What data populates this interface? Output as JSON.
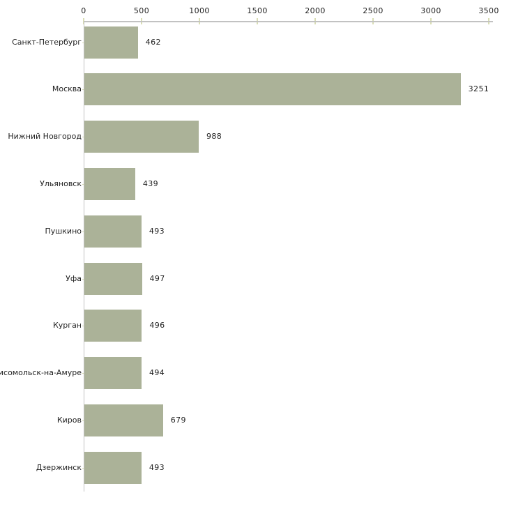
{
  "chart_data": {
    "type": "bar",
    "orientation": "horizontal",
    "title": "",
    "xlabel": "",
    "ylabel": "",
    "categories": [
      "Санкт-Петербург",
      "Москва",
      "Нижний Новгород",
      "Ульяновск",
      "Пушкино",
      "Уфа",
      "Курган",
      "мсомольск-на-Амуре",
      "Киров",
      "Дзержинск"
    ],
    "values": [
      462,
      3251,
      988,
      439,
      493,
      497,
      496,
      494,
      679,
      493
    ],
    "value_labels": [
      "462",
      "3251",
      "988",
      "439",
      "493",
      "497",
      "496",
      "494",
      "679",
      "493"
    ],
    "x_ticks": [
      "0",
      "500",
      "1000",
      "1500",
      "2000",
      "2500",
      "3000",
      "3500"
    ],
    "xlim": [
      0,
      3540
    ],
    "grid": false,
    "legend": false,
    "colors": {
      "bar": "#abb298",
      "axis_line": "#c2c2c2",
      "tick_mark": "#d9ddb5",
      "text": "#1f1f1f",
      "background": "#ffffff"
    }
  }
}
